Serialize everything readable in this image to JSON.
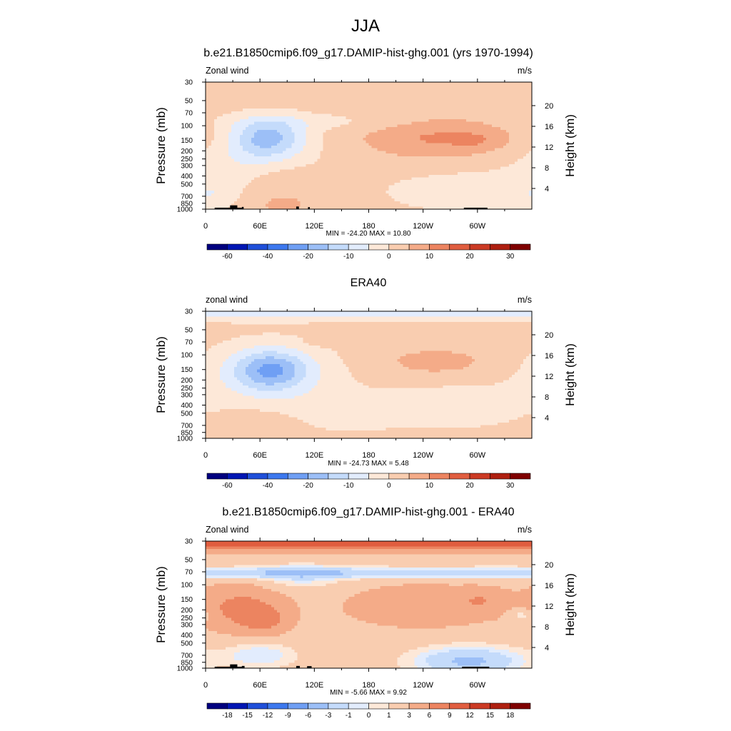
{
  "figure": {
    "title": "JJA"
  },
  "colors": {
    "wind_scale": [
      "#00007f",
      "#0016b3",
      "#1f4fd9",
      "#3c78ee",
      "#6f9ff4",
      "#9cbff7",
      "#c4dbfb",
      "#e2ecfd",
      "#fde8d8",
      "#f9cdb0",
      "#f4ab88",
      "#ec8460",
      "#e05d3f",
      "#cb3a24",
      "#ae1f10",
      "#7f0000"
    ],
    "diff_scale": [
      "#00007f",
      "#0016b3",
      "#1f4fd9",
      "#3c78ee",
      "#6f9ff4",
      "#9cbff7",
      "#c4dbfb",
      "#e2ecfd",
      "#fde8d8",
      "#f9cdb0",
      "#f4ab88",
      "#ec8460",
      "#e05d3f",
      "#cb3a24",
      "#ae1f10",
      "#7f0000"
    ],
    "land": "#000000"
  },
  "panels": [
    {
      "title": "b.e21.B1850cmip6.f09_g17.DAMIP-hist-ghg.001 (yrs 1970-1994)",
      "left_label": "Zonal wind",
      "units": "m/s",
      "ylabel": "Pressure (mb)",
      "y2label": "Height (km)",
      "stats": "MIN = -24.20  MAX =  10.80",
      "colorbar_labels": [
        "-60",
        "-40",
        "-20",
        "-10",
        "0",
        "10",
        "20",
        "30"
      ]
    },
    {
      "title": "ERA40",
      "left_label": "zonal wind",
      "units": "m/s",
      "ylabel": "Pressure (mb)",
      "y2label": "Height (km)",
      "stats": "MIN = -24.73  MAX =   5.48",
      "colorbar_labels": [
        "-60",
        "-40",
        "-20",
        "-10",
        "0",
        "10",
        "20",
        "30"
      ]
    },
    {
      "title": "b.e21.B1850cmip6.f09_g17.DAMIP-hist-ghg.001 - ERA40",
      "left_label": "Zonal wind",
      "units": "m/s",
      "ylabel": "Pressure (mb)",
      "y2label": "Height (km)",
      "stats": "MIN =  -5.66  MAX =   9.92",
      "colorbar_labels": [
        "-18",
        "-15",
        "-12",
        "-9",
        "-6",
        "-3",
        "-1",
        "0",
        "1",
        "3",
        "6",
        "9",
        "12",
        "15",
        "18"
      ]
    }
  ],
  "chart_data": [
    {
      "type": "heatmap",
      "title": "b.e21.B1850cmip6.f09_g17.DAMIP-hist-ghg.001 (yrs 1970-1994)",
      "variable": "Zonal wind",
      "units": "m/s",
      "ylabel": "Pressure (mb)",
      "y2label": "Height (km)",
      "x_ticks": [
        "0",
        "60E",
        "120E",
        "180",
        "120W",
        "60W"
      ],
      "x_tick_lon": [
        0,
        60,
        120,
        180,
        240,
        300
      ],
      "xlim": [
        0,
        360
      ],
      "y_ticks": [
        "30",
        "50",
        "70",
        "100",
        "150",
        "200",
        "250",
        "300",
        "400",
        "500",
        "700",
        "850",
        "1000"
      ],
      "y_tick_p": [
        30,
        50,
        70,
        100,
        150,
        200,
        250,
        300,
        400,
        500,
        700,
        850,
        1000
      ],
      "ylim": [
        1000,
        30
      ],
      "y_scale": "log",
      "y2_ticks": [
        "4",
        "8",
        "12",
        "16",
        "20"
      ],
      "min": -24.2,
      "max": 10.8,
      "levels": [
        -70,
        -60,
        -50,
        -40,
        -30,
        -20,
        -15,
        -10,
        -5,
        0,
        5,
        10,
        15,
        20,
        25,
        30,
        40
      ],
      "background_value": 2,
      "features": [
        {
          "kind": "blob",
          "lon": 50,
          "p": 280,
          "rlon": 68,
          "rp": 0.5,
          "amp": -5.5
        },
        {
          "kind": "blob",
          "lon": 68,
          "p": 140,
          "rlon": 42,
          "rp": 0.55,
          "amp": -19
        },
        {
          "kind": "blob",
          "lon": 80,
          "p": 850,
          "rlon": 55,
          "rp": 0.45,
          "amp": 4
        },
        {
          "kind": "blob",
          "lon": 78,
          "p": 350,
          "rlon": 40,
          "rp": 0.45,
          "amp": 3
        },
        {
          "kind": "blob",
          "lon": 255,
          "p": 140,
          "rlon": 80,
          "rp": 0.55,
          "amp": 8.5
        },
        {
          "kind": "blob",
          "lon": 300,
          "p": 150,
          "rlon": 25,
          "rp": 0.25,
          "amp": 3
        },
        {
          "kind": "blob",
          "lon": 120,
          "p": 90,
          "rlon": 110,
          "rp": 0.25,
          "amp": -3.5
        },
        {
          "kind": "blob",
          "lon": 300,
          "p": 620,
          "rlon": 100,
          "rp": 0.55,
          "amp": -5.5
        },
        {
          "kind": "blob",
          "lon": 10,
          "p": 700,
          "rlon": 30,
          "rp": 0.45,
          "amp": -4
        }
      ],
      "land": [
        {
          "lon0": 10,
          "lon1": 40,
          "p_top": 960
        },
        {
          "lon0": 27,
          "lon1": 35,
          "p_top": 900
        },
        {
          "lon0": 40,
          "lon1": 42,
          "p_top": 940
        },
        {
          "lon0": 100,
          "lon1": 103,
          "p_top": 930
        },
        {
          "lon0": 113,
          "lon1": 115,
          "p_top": 945
        },
        {
          "lon0": 285,
          "lon1": 311,
          "p_top": 960
        }
      ]
    },
    {
      "type": "heatmap",
      "title": "ERA40",
      "variable": "zonal wind",
      "units": "m/s",
      "ylabel": "Pressure (mb)",
      "y2label": "Height (km)",
      "x_ticks": [
        "0",
        "60E",
        "120E",
        "180",
        "120W",
        "60W"
      ],
      "x_tick_lon": [
        0,
        60,
        120,
        180,
        240,
        300
      ],
      "xlim": [
        0,
        360
      ],
      "y_ticks": [
        "30",
        "50",
        "70",
        "100",
        "150",
        "200",
        "250",
        "300",
        "400",
        "500",
        "700",
        "850",
        "1000"
      ],
      "y_tick_p": [
        30,
        50,
        70,
        100,
        150,
        200,
        250,
        300,
        400,
        500,
        700,
        850,
        1000
      ],
      "ylim": [
        1000,
        30
      ],
      "y_scale": "log",
      "y2_ticks": [
        "4",
        "8",
        "12",
        "16",
        "20"
      ],
      "min": -24.73,
      "max": 5.48,
      "levels": [
        -70,
        -60,
        -50,
        -40,
        -30,
        -20,
        -15,
        -10,
        -5,
        0,
        5,
        10,
        15,
        20,
        25,
        30,
        40
      ],
      "background_value": 2,
      "features": [
        {
          "kind": "band",
          "p": 32,
          "rp": 0.2,
          "amp": -9
        },
        {
          "kind": "blob",
          "lon": 70,
          "p": 180,
          "rlon": 80,
          "rp": 0.9,
          "amp": -7.5
        },
        {
          "kind": "blob",
          "lon": 72,
          "p": 150,
          "rlon": 40,
          "rp": 0.55,
          "amp": -17
        },
        {
          "kind": "blob",
          "lon": 150,
          "p": 500,
          "rlon": 60,
          "rp": 0.5,
          "amp": -5
        },
        {
          "kind": "blob",
          "lon": 270,
          "p": 420,
          "rlon": 80,
          "rp": 0.55,
          "amp": -6
        },
        {
          "kind": "blob",
          "lon": 255,
          "p": 120,
          "rlon": 65,
          "rp": 0.4,
          "amp": 5
        },
        {
          "kind": "blob",
          "lon": 60,
          "p": 700,
          "rlon": 50,
          "rp": 0.4,
          "amp": 4
        },
        {
          "kind": "blob",
          "lon": 150,
          "p": 72,
          "rlon": 40,
          "rp": 0.1,
          "amp": 3.5
        }
      ],
      "land": []
    },
    {
      "type": "heatmap",
      "title": "b.e21.B1850cmip6.f09_g17.DAMIP-hist-ghg.001 - ERA40",
      "variable": "Zonal wind",
      "units": "m/s",
      "ylabel": "Pressure (mb)",
      "y2label": "Height (km)",
      "x_ticks": [
        "0",
        "60E",
        "120E",
        "180",
        "120W",
        "60W"
      ],
      "x_tick_lon": [
        0,
        60,
        120,
        180,
        240,
        300
      ],
      "xlim": [
        0,
        360
      ],
      "y_ticks": [
        "30",
        "50",
        "70",
        "100",
        "150",
        "200",
        "250",
        "300",
        "400",
        "500",
        "700",
        "850",
        "1000"
      ],
      "y_tick_p": [
        30,
        50,
        70,
        100,
        150,
        200,
        250,
        300,
        400,
        500,
        700,
        850,
        1000
      ],
      "ylim": [
        1000,
        30
      ],
      "y_scale": "log",
      "y2_ticks": [
        "4",
        "8",
        "12",
        "16",
        "20"
      ],
      "min": -5.66,
      "max": 9.92,
      "levels": [
        -20,
        -18,
        -15,
        -12,
        -9,
        -6,
        -3,
        -1,
        0,
        1,
        3,
        6,
        9,
        12,
        15,
        18,
        20
      ],
      "background_value": 2,
      "features": [
        {
          "kind": "band",
          "p": 32,
          "rp": 0.22,
          "amp": 7.5
        },
        {
          "kind": "band",
          "p": 72,
          "rp": 0.15,
          "amp": -4.5
        },
        {
          "kind": "blob",
          "lon": 105,
          "p": 80,
          "rlon": 45,
          "rp": 0.35,
          "amp": -2.5
        },
        {
          "kind": "blob",
          "lon": 40,
          "p": 190,
          "rlon": 45,
          "rp": 0.6,
          "amp": 5
        },
        {
          "kind": "blob",
          "lon": 65,
          "p": 270,
          "rlon": 25,
          "rp": 0.35,
          "amp": 4
        },
        {
          "kind": "blob",
          "lon": 240,
          "p": 180,
          "rlon": 80,
          "rp": 0.55,
          "amp": 3.5
        },
        {
          "kind": "blob",
          "lon": 305,
          "p": 150,
          "rlon": 25,
          "rp": 0.3,
          "amp": 2.5
        },
        {
          "kind": "blob",
          "lon": 290,
          "p": 820,
          "rlon": 60,
          "rp": 0.4,
          "amp": -5.5
        },
        {
          "kind": "blob",
          "lon": 60,
          "p": 700,
          "rlon": 40,
          "rp": 0.35,
          "amp": -3
        },
        {
          "kind": "blob",
          "lon": 350,
          "p": 230,
          "rlon": 15,
          "rp": 0.2,
          "amp": -3
        }
      ],
      "land": [
        {
          "lon0": 10,
          "lon1": 42,
          "p_top": 960
        },
        {
          "lon0": 27,
          "lon1": 35,
          "p_top": 900
        },
        {
          "lon0": 40,
          "lon1": 43,
          "p_top": 940
        },
        {
          "lon0": 100,
          "lon1": 104,
          "p_top": 940
        },
        {
          "lon0": 112,
          "lon1": 117,
          "p_top": 945
        },
        {
          "lon0": 283,
          "lon1": 313,
          "p_top": 960
        }
      ]
    }
  ]
}
